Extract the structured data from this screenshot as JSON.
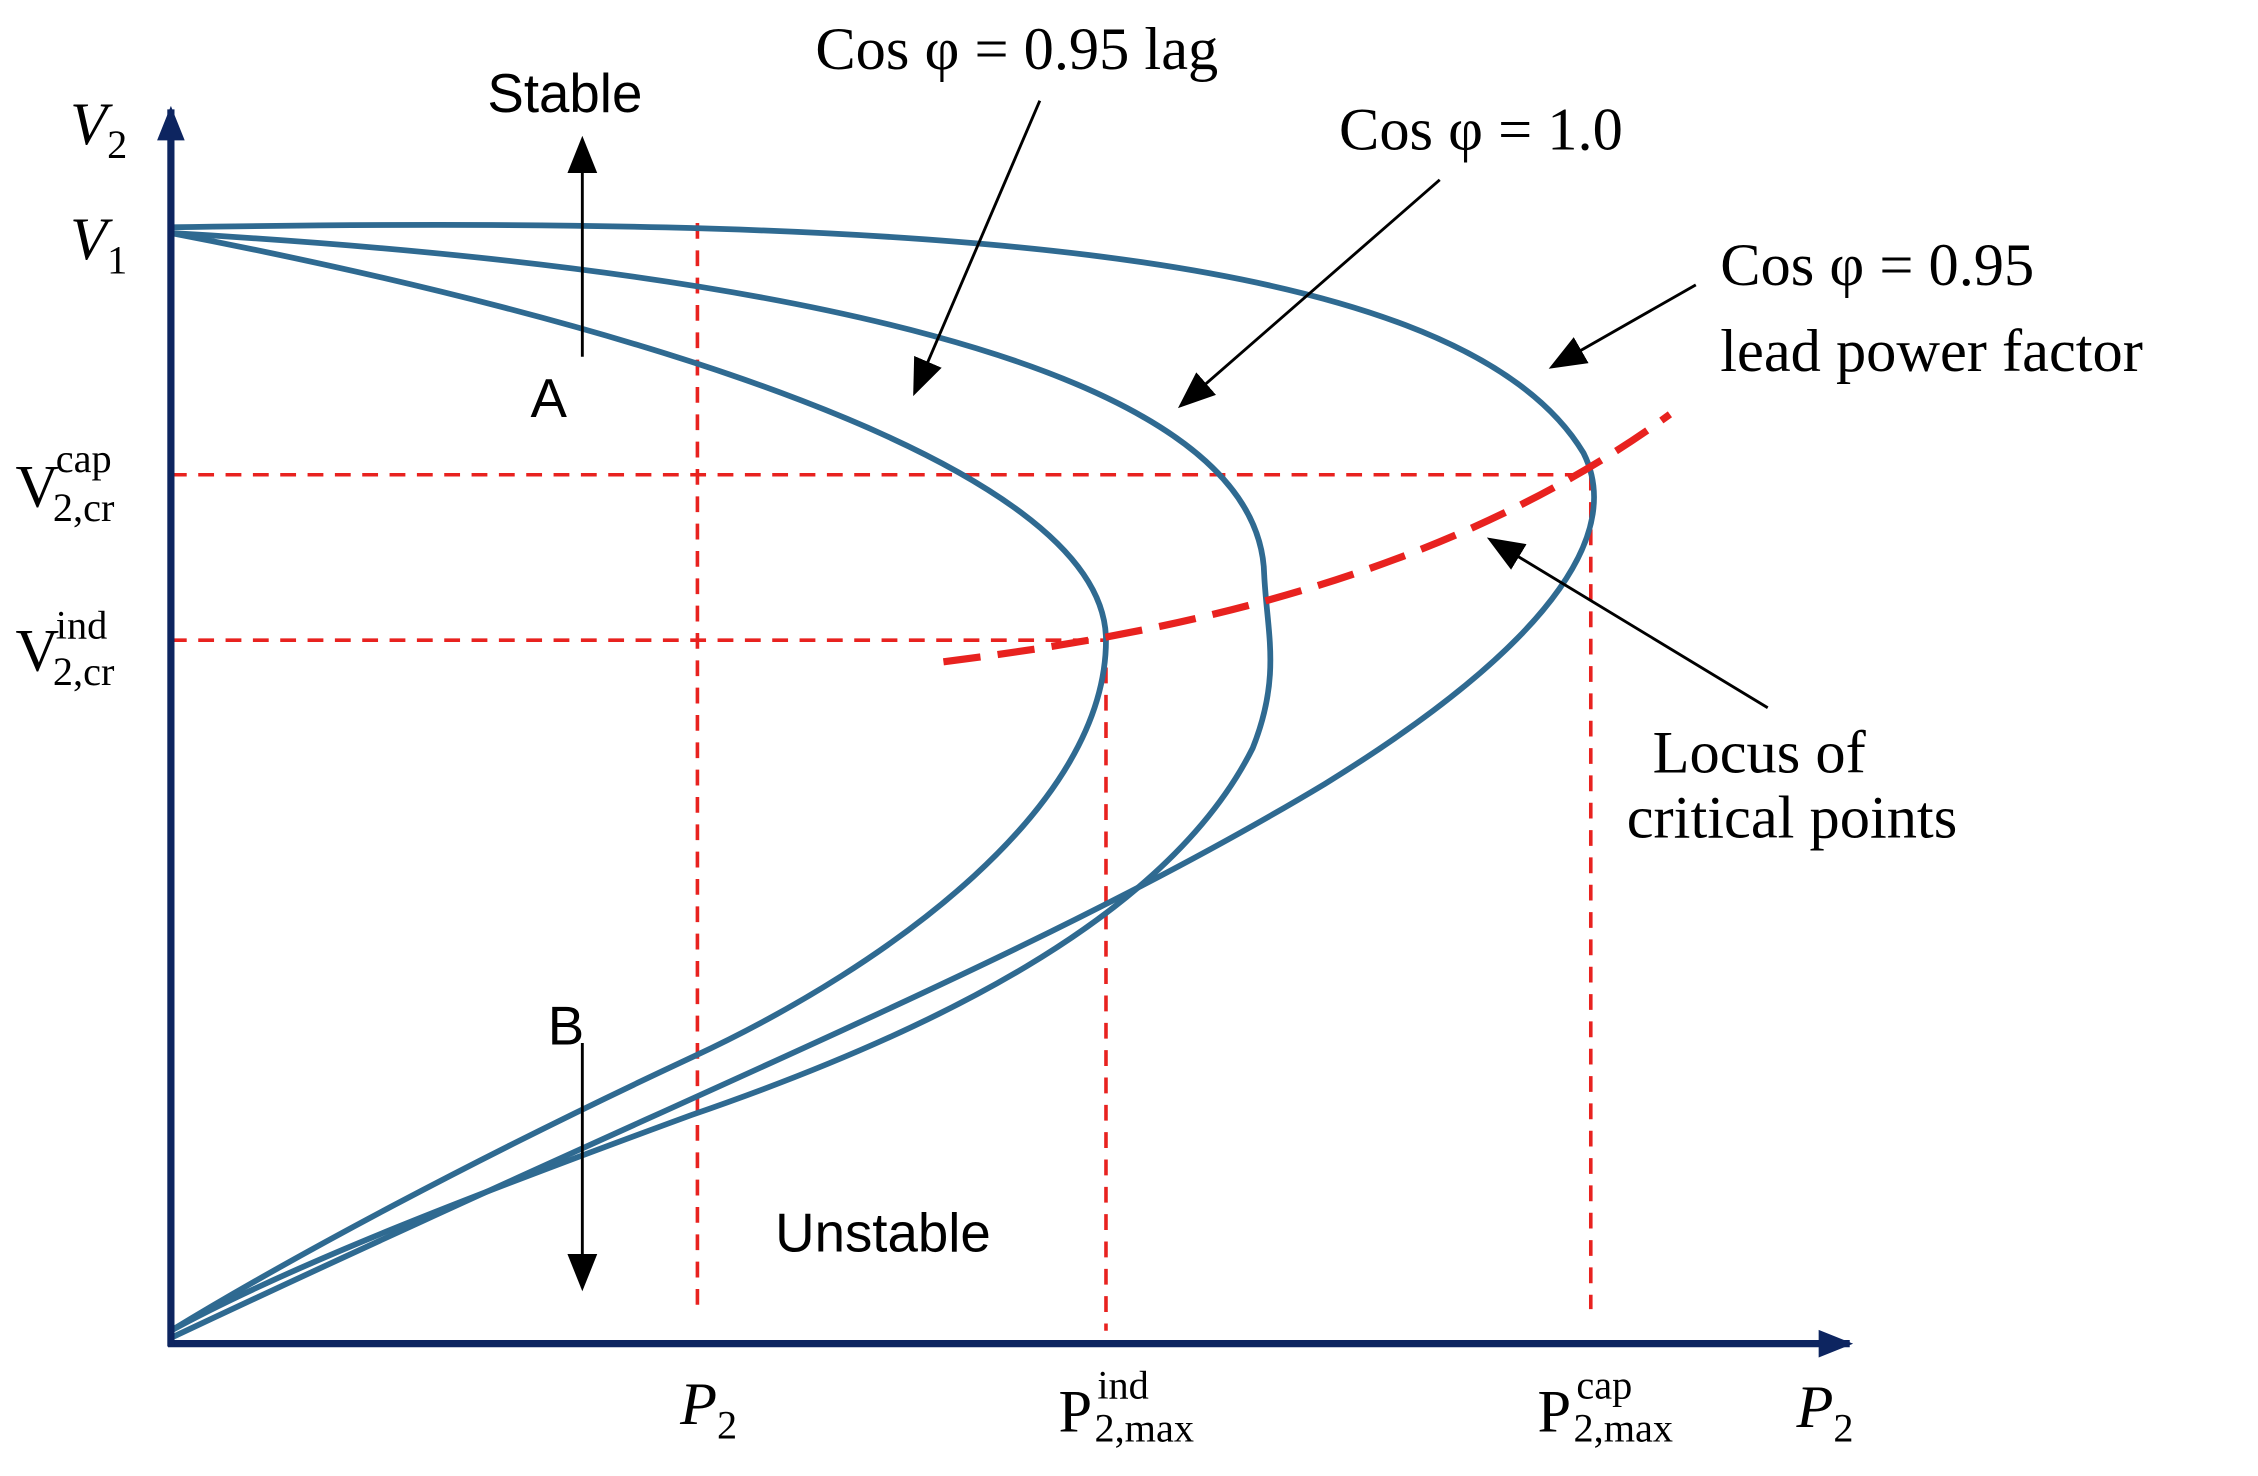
{
  "diagram": {
    "y_axis_label": {
      "main": "V",
      "sub": "2"
    },
    "x_axis_label": {
      "main": "P",
      "sub": "2"
    },
    "v1_label": {
      "main": "V",
      "sub": "1"
    },
    "v_cr_cap_label": {
      "main": "V",
      "sup": "cap",
      "sub": "2,cr"
    },
    "v_cr_ind_label": {
      "main": "V",
      "sup": "ind",
      "sub": "2,cr"
    },
    "p2_label": {
      "main": "P",
      "sub": "2"
    },
    "p_max_ind_label": {
      "main": "P",
      "sup": "ind",
      "sub": "2,max"
    },
    "p_max_cap_label": {
      "main": "P",
      "sup": "cap",
      "sub": "2,max"
    },
    "curve_labels": [
      "Cos φ = 0.95 lag",
      "Cos φ = 1.0",
      "Cos φ = 0.95",
      "lead power factor"
    ],
    "locus_label": [
      "Locus of",
      "critical points"
    ],
    "stable_label": "Stable",
    "unstable_label": "Unstable",
    "point_a": "A",
    "point_b": "B"
  }
}
